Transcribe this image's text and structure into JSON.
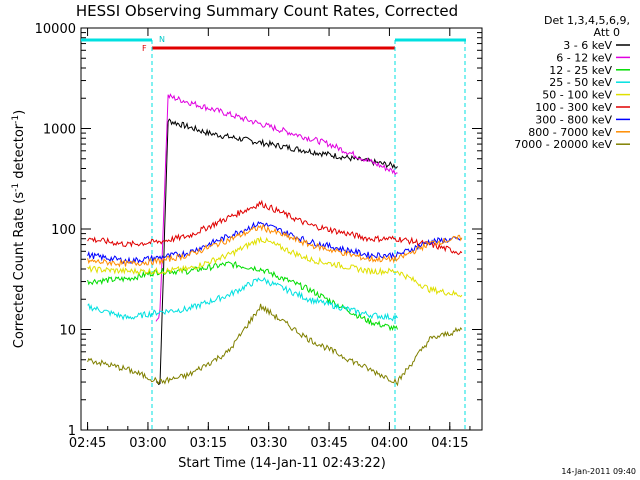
{
  "chart_data": {
    "type": "line",
    "title": "HESSI Observing Summary Count Rates, Corrected",
    "xlabel": "Start Time (14-Jan-11 02:43:22)",
    "ylabel_main": "Corrected Count Rate (s",
    "ylabel_sup1": "-1",
    "ylabel_mid": " detector",
    "ylabel_sup2": "-1",
    "ylabel_end": ")",
    "x_range": [
      "02:43:22",
      "04:23:00"
    ],
    "y_range": [
      1,
      10000
    ],
    "y_scale": "log",
    "x_ticks": [
      "02:45",
      "03:00",
      "03:15",
      "03:30",
      "03:45",
      "04:00",
      "04:15"
    ],
    "y_ticks": [
      "1",
      "10",
      "100",
      "1000",
      "10000"
    ],
    "legend_header_1": "Det 1,3,4,5,6,9,",
    "legend_header_2": "Att 0",
    "legend_position": "right",
    "flags": {
      "night_label": "N",
      "flare_label": "F"
    },
    "timestamp": "14-Jan-2011 09:40",
    "series": [
      {
        "name": "3 - 6 keV",
        "color": "#000000",
        "x": [
          "03:02:00",
          "03:03:00",
          "03:05:00",
          "03:15:00",
          "03:30:00",
          "03:45:00",
          "04:02:00"
        ],
        "y": [
          3,
          3,
          1200,
          900,
          700,
          550,
          420
        ]
      },
      {
        "name": "6 - 12 keV",
        "color": "#e000e0",
        "x": [
          "03:02:00",
          "03:03:00",
          "03:05:00",
          "03:15:00",
          "03:30:00",
          "03:45:00",
          "04:02:00"
        ],
        "y": [
          12,
          15,
          2100,
          1600,
          1050,
          700,
          360
        ]
      },
      {
        "name": "12 - 25 keV",
        "color": "#00dd00",
        "x": [
          "02:45",
          "02:55",
          "03:03",
          "03:10",
          "03:20",
          "03:28",
          "03:40",
          "03:55",
          "04:02"
        ],
        "y": [
          30,
          32,
          38,
          38,
          45,
          40,
          25,
          12,
          10
        ]
      },
      {
        "name": "25 - 50 keV",
        "color": "#00e0e0",
        "x": [
          "02:45",
          "02:55",
          "03:03",
          "03:10",
          "03:20",
          "03:28",
          "03:40",
          "03:55",
          "04:02"
        ],
        "y": [
          17,
          13,
          15,
          16,
          22,
          32,
          20,
          14,
          13
        ]
      },
      {
        "name": "50 - 100 keV",
        "color": "#e0e000",
        "x": [
          "02:45",
          "02:55",
          "03:03",
          "03:10",
          "03:20",
          "03:28",
          "03:40",
          "03:55",
          "04:02",
          "04:10",
          "04:18"
        ],
        "y": [
          40,
          38,
          38,
          40,
          55,
          80,
          50,
          38,
          38,
          25,
          22
        ]
      },
      {
        "name": "100 - 300 keV",
        "color": "#e00000",
        "x": [
          "02:45",
          "02:55",
          "03:03",
          "03:10",
          "03:20",
          "03:28",
          "03:40",
          "03:55",
          "04:02",
          "04:10",
          "04:18"
        ],
        "y": [
          80,
          70,
          75,
          85,
          130,
          180,
          110,
          80,
          80,
          70,
          58
        ]
      },
      {
        "name": "300 - 800 keV",
        "color": "#0000ff",
        "x": [
          "02:45",
          "02:55",
          "03:03",
          "03:10",
          "03:20",
          "03:28",
          "03:40",
          "03:55",
          "04:02",
          "04:10",
          "04:18"
        ],
        "y": [
          55,
          48,
          52,
          58,
          85,
          115,
          75,
          55,
          55,
          75,
          80
        ]
      },
      {
        "name": "800 - 7000 keV",
        "color": "#ff8c00",
        "x": [
          "02:45",
          "02:55",
          "03:03",
          "03:10",
          "03:20",
          "03:28",
          "03:40",
          "03:55",
          "04:02",
          "04:10",
          "04:18"
        ],
        "y": [
          48,
          45,
          48,
          55,
          78,
          105,
          70,
          50,
          50,
          72,
          82
        ]
      },
      {
        "name": "7000 - 20000 keV",
        "color": "#808000",
        "x": [
          "02:45",
          "02:55",
          "03:03",
          "03:10",
          "03:20",
          "03:28",
          "03:40",
          "03:55",
          "04:02",
          "04:10",
          "04:18"
        ],
        "y": [
          5,
          4,
          3,
          3.5,
          6,
          17,
          8,
          4,
          3,
          8,
          10
        ]
      }
    ]
  }
}
